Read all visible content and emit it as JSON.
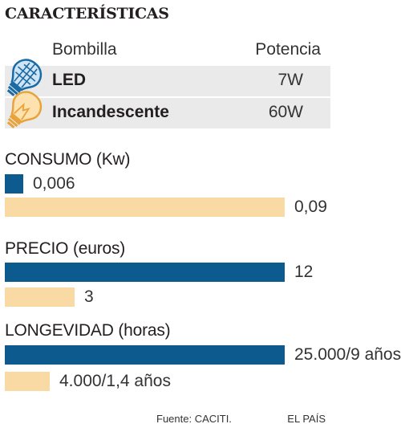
{
  "title": "CARACTERÍSTICAS",
  "table": {
    "col_bulb": "Bombilla",
    "col_power": "Potencia",
    "rows": [
      {
        "name": "LED",
        "power": "7W"
      },
      {
        "name": "Incandescente",
        "power": "60W"
      }
    ]
  },
  "chart_data": {
    "type": "bar",
    "orientation": "horizontal",
    "colors": {
      "led": "#0d5b8e",
      "incandescente": "#f9d9a4"
    },
    "panels": [
      {
        "title": "CONSUMO (Kw)",
        "items": [
          {
            "value": 0.006,
            "label": "0,006"
          },
          {
            "value": 0.09,
            "label": "0,09"
          }
        ]
      },
      {
        "title": "PRECIO (euros)",
        "items": [
          {
            "value": 12,
            "label": "12"
          },
          {
            "value": 3,
            "label": "3"
          }
        ]
      },
      {
        "title": "LONGEVIDAD (horas)",
        "items": [
          {
            "value": 25000,
            "label": "25.000/9 años"
          },
          {
            "value": 4000,
            "label": "4.000/1,4 años"
          }
        ]
      }
    ]
  },
  "footer": {
    "source": "Fuente: CACITI.",
    "credit": "EL PAÍS"
  }
}
